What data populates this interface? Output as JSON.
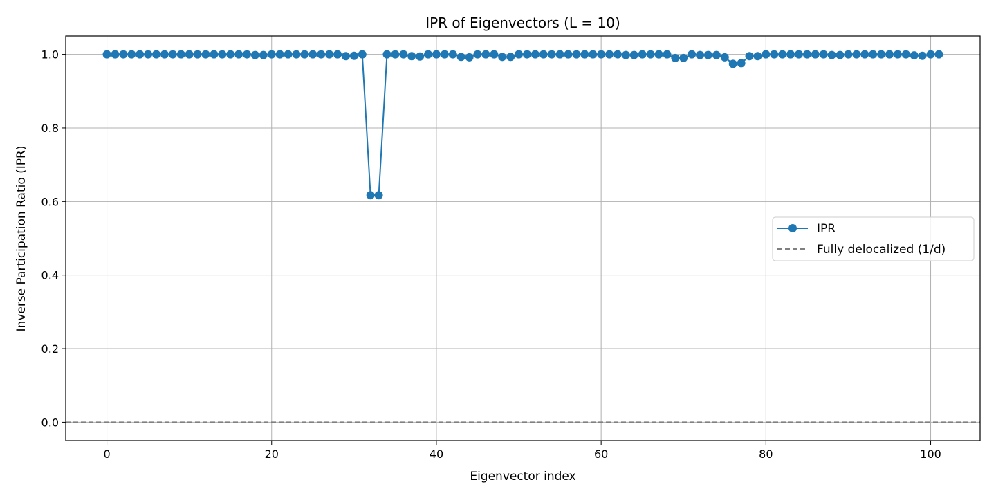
{
  "chart_data": {
    "type": "line",
    "title": "IPR of Eigenvectors (L = 10)",
    "xlabel": "Eigenvector index",
    "ylabel": "Inverse Participation Ratio (IPR)",
    "xlim": [
      -5,
      106
    ],
    "ylim": [
      -0.05,
      1.05
    ],
    "xticks": [
      0,
      20,
      40,
      60,
      80,
      100
    ],
    "yticks": [
      0.0,
      0.2,
      0.4,
      0.6,
      0.8,
      1.0
    ],
    "xtick_labels": [
      "0",
      "20",
      "40",
      "60",
      "80",
      "100"
    ],
    "ytick_labels": [
      "0.0",
      "0.2",
      "0.4",
      "0.6",
      "0.8",
      "1.0"
    ],
    "grid": true,
    "legend_position": "center-right",
    "series": [
      {
        "name": "IPR",
        "style": "line-with-markers",
        "color": "#1f77b4",
        "x": [
          0,
          1,
          2,
          3,
          4,
          5,
          6,
          7,
          8,
          9,
          10,
          11,
          12,
          13,
          14,
          15,
          16,
          17,
          18,
          19,
          20,
          21,
          22,
          23,
          24,
          25,
          26,
          27,
          28,
          29,
          30,
          31,
          32,
          33,
          34,
          35,
          36,
          37,
          38,
          39,
          40,
          41,
          42,
          43,
          44,
          45,
          46,
          47,
          48,
          49,
          50,
          51,
          52,
          53,
          54,
          55,
          56,
          57,
          58,
          59,
          60,
          61,
          62,
          63,
          64,
          65,
          66,
          67,
          68,
          69,
          70,
          71,
          72,
          73,
          74,
          75,
          76,
          77,
          78,
          79,
          80,
          81,
          82,
          83,
          84,
          85,
          86,
          87,
          88,
          89,
          90,
          91,
          92,
          93,
          94,
          95,
          96,
          97,
          98,
          99,
          100,
          101
        ],
        "y": [
          1.0,
          1.0,
          1.0,
          1.0,
          1.0,
          1.0,
          1.0,
          1.0,
          1.0,
          1.0,
          1.0,
          1.0,
          1.0,
          1.0,
          1.0,
          1.0,
          1.0,
          1.0,
          0.998,
          0.998,
          1.0,
          1.0,
          1.0,
          1.0,
          1.0,
          1.0,
          1.0,
          1.0,
          1.0,
          0.995,
          0.996,
          1.0,
          0.617,
          0.617,
          1.0,
          1.0,
          1.0,
          0.995,
          0.994,
          1.0,
          1.0,
          1.0,
          1.0,
          0.993,
          0.992,
          1.0,
          1.0,
          1.0,
          0.993,
          0.993,
          1.0,
          1.0,
          1.0,
          1.0,
          1.0,
          1.0,
          1.0,
          1.0,
          1.0,
          1.0,
          1.0,
          1.0,
          1.0,
          0.998,
          0.998,
          1.0,
          1.0,
          1.0,
          1.0,
          0.99,
          0.99,
          1.0,
          0.998,
          0.998,
          0.998,
          0.992,
          0.974,
          0.976,
          0.995,
          0.995,
          1.0,
          1.0,
          1.0,
          1.0,
          1.0,
          1.0,
          1.0,
          1.0,
          0.998,
          0.998,
          1.0,
          1.0,
          1.0,
          1.0,
          1.0,
          1.0,
          1.0,
          1.0,
          0.997,
          0.996,
          1.0,
          1.0
        ]
      },
      {
        "name": "Fully delocalized (1/d)",
        "style": "dashed-line",
        "color": "#808080",
        "y": 0.0
      }
    ]
  }
}
